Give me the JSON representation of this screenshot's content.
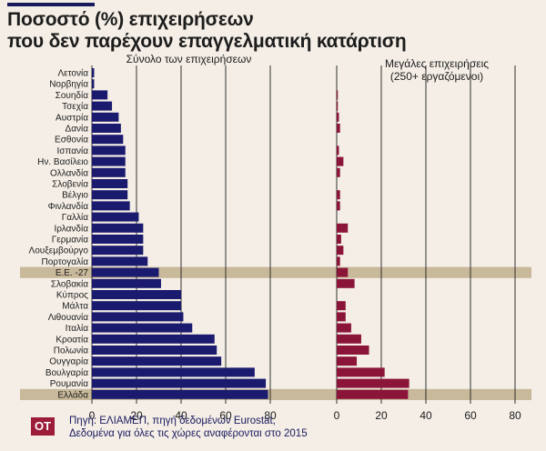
{
  "title_line1": "Ποσοστό (%) επιχειρήσεων",
  "title_line2": "που δεν παρέχουν επαγγελματική κατάρτιση",
  "footer": {
    "logo": "OT",
    "source_line1": "Πηγή: ΕΛΙΑΜΕΠ, πηγή δεδομένων Eurostat,",
    "source_line2": "Δεδομένα για όλες τις χώρες αναφέρονται στο 2015"
  },
  "colors": {
    "left_bar": "#1a1a6e",
    "right_bar": "#8b1538",
    "highlight": "#c9b99b",
    "grid": "#1c1c1c",
    "background": "#f4eee6"
  },
  "chart_data": {
    "type": "bar",
    "orientation": "horizontal",
    "categories": [
      "Λετονία",
      "Νορβηγία",
      "Σουηδία",
      "Τσεχία",
      "Αυστρία",
      "Δανία",
      "Εσθονία",
      "Ισπανία",
      "Ην. Βασίλειο",
      "Ολλανδία",
      "Σλοβενία",
      "Βέλγιο",
      "Φινλανδία",
      "Γαλλία",
      "Ιρλανδία",
      "Γερμανία",
      "Λουξεμβούργο",
      "Πορτογαλία",
      "Ε.Ε. -27",
      "Σλοβακία",
      "Κύπρος",
      "Μάλτα",
      "Λιθουανία",
      "Ιταλία",
      "Κροατία",
      "Πολωνία",
      "Ουγγαρία",
      "Βουλγαρία",
      "Ρουμανία",
      "Ελλάδα"
    ],
    "highlighted": [
      "Ε.Ε. -27",
      "Ελλάδα"
    ],
    "series": [
      {
        "name": "Σύνολο των επιχειρήσεων",
        "values": [
          1,
          1,
          7,
          9,
          12,
          13,
          14,
          15,
          15,
          15,
          16,
          16,
          17,
          21,
          23,
          23,
          23,
          25,
          30,
          31,
          40,
          40,
          41,
          45,
          55,
          56,
          58,
          73,
          78,
          79
        ],
        "xlim": [
          0,
          80
        ],
        "xticks": [
          0,
          20,
          40,
          60,
          80
        ]
      },
      {
        "name": "Μεγάλες επιχειρήσεις\n(250+ εργαζόμενοι)",
        "name_line1": "Μεγάλες επιχειρήσεις",
        "name_line2": "(250+ εργαζόμενοι)",
        "values": [
          0,
          0,
          0.5,
          0.5,
          1,
          1.5,
          0,
          1,
          3,
          1.5,
          0,
          1.5,
          1.5,
          0,
          5,
          2,
          3,
          1.5,
          5,
          8,
          0,
          4,
          4,
          6.5,
          11,
          14.5,
          9,
          21.5,
          32.5,
          32
        ],
        "xlim": [
          0,
          80
        ],
        "xticks": [
          0,
          20,
          40,
          60,
          80
        ]
      }
    ]
  }
}
